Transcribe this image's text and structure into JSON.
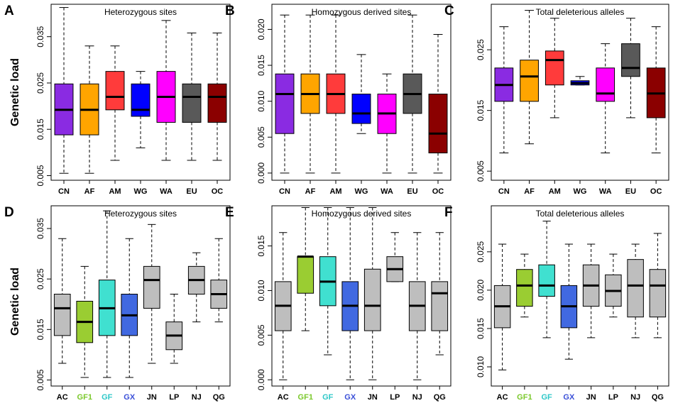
{
  "figure": {
    "ylabel": "Genetic load"
  },
  "chart_data": [
    {
      "id": "A",
      "type": "boxplot",
      "title": "Heterozygous sites",
      "ylabel": "Genetic load",
      "ylim": [
        0.004,
        0.042
      ],
      "ticks": [
        0.005,
        0.015,
        0.025,
        0.035
      ],
      "tick_labels": [
        "0.005",
        "0.015",
        "0.025",
        "0.035"
      ],
      "categories": [
        "CN",
        "AF",
        "AM",
        "WG",
        "WA",
        "EU",
        "OC"
      ],
      "label_colors": [
        "#000000",
        "#000000",
        "#000000",
        "#000000",
        "#000000",
        "#000000",
        "#000000"
      ],
      "fill_colors": [
        "#8a2be2",
        "#ffa500",
        "#ff3b3b",
        "#0000ff",
        "#ff00ff",
        "#595959",
        "#8b0000"
      ],
      "boxes": [
        {
          "min": 0.0055,
          "q1": 0.0138,
          "median": 0.0192,
          "q3": 0.0248,
          "max": 0.0413
        },
        {
          "min": 0.0055,
          "q1": 0.0138,
          "median": 0.0192,
          "q3": 0.0248,
          "max": 0.033
        },
        {
          "min": 0.0083,
          "q1": 0.0192,
          "median": 0.022,
          "q3": 0.0275,
          "max": 0.033
        },
        {
          "min": 0.011,
          "q1": 0.0178,
          "median": 0.0192,
          "q3": 0.0248,
          "max": 0.0275
        },
        {
          "min": 0.0083,
          "q1": 0.0165,
          "median": 0.022,
          "q3": 0.0275,
          "max": 0.0385
        },
        {
          "min": 0.0083,
          "q1": 0.0165,
          "median": 0.022,
          "q3": 0.0248,
          "max": 0.0358
        },
        {
          "min": 0.0083,
          "q1": 0.0165,
          "median": 0.022,
          "q3": 0.0248,
          "max": 0.0358
        }
      ]
    },
    {
      "id": "B",
      "type": "boxplot",
      "title": "Homozygous derived sites",
      "ylabel": "",
      "ylim": [
        -0.001,
        0.0235
      ],
      "ticks": [
        0.0,
        0.005,
        0.01,
        0.015,
        0.02
      ],
      "tick_labels": [
        "0.000",
        "0.005",
        "0.010",
        "0.015",
        "0.020"
      ],
      "categories": [
        "CN",
        "AF",
        "AM",
        "WG",
        "WA",
        "EU",
        "OC"
      ],
      "label_colors": [
        "#000000",
        "#000000",
        "#000000",
        "#000000",
        "#000000",
        "#000000",
        "#000000"
      ],
      "fill_colors": [
        "#8a2be2",
        "#ffa500",
        "#ff3b3b",
        "#0000ff",
        "#ff00ff",
        "#595959",
        "#8b0000"
      ],
      "boxes": [
        {
          "min": 0.0,
          "q1": 0.0055,
          "median": 0.011,
          "q3": 0.0138,
          "max": 0.022
        },
        {
          "min": 0.0,
          "q1": 0.0083,
          "median": 0.011,
          "q3": 0.0138,
          "max": 0.022
        },
        {
          "min": 0.0,
          "q1": 0.0083,
          "median": 0.011,
          "q3": 0.0138,
          "max": 0.022
        },
        {
          "min": 0.0055,
          "q1": 0.0069,
          "median": 0.0083,
          "q3": 0.011,
          "max": 0.0165
        },
        {
          "min": 0.0,
          "q1": 0.0055,
          "median": 0.0083,
          "q3": 0.011,
          "max": 0.0138
        },
        {
          "min": 0.0,
          "q1": 0.0083,
          "median": 0.011,
          "q3": 0.0138,
          "max": 0.022
        },
        {
          "min": 0.0,
          "q1": 0.0028,
          "median": 0.0055,
          "q3": 0.011,
          "max": 0.0193
        }
      ]
    },
    {
      "id": "C",
      "type": "boxplot",
      "title": "Total deleterious alleles",
      "ylabel": "",
      "ylim": [
        0.0035,
        0.0325
      ],
      "ticks": [
        0.005,
        0.015,
        0.025
      ],
      "tick_labels": [
        "0.005",
        "0.015",
        "0.025"
      ],
      "categories": [
        "CN",
        "AF",
        "AM",
        "WG",
        "WA",
        "EU",
        "OC"
      ],
      "label_colors": [
        "#000000",
        "#000000",
        "#000000",
        "#000000",
        "#000000",
        "#000000",
        "#000000"
      ],
      "fill_colors": [
        "#8a2be2",
        "#ffa500",
        "#ff3b3b",
        "#0000ff",
        "#ff00ff",
        "#595959",
        "#8b0000"
      ],
      "boxes": [
        {
          "min": 0.008,
          "q1": 0.0165,
          "median": 0.0192,
          "q3": 0.022,
          "max": 0.0288
        },
        {
          "min": 0.0095,
          "q1": 0.0165,
          "median": 0.0206,
          "q3": 0.0233,
          "max": 0.0315
        },
        {
          "min": 0.0138,
          "q1": 0.0192,
          "median": 0.0233,
          "q3": 0.0248,
          "max": 0.0302
        },
        {
          "min": 0.0192,
          "q1": 0.0192,
          "median": 0.0195,
          "q3": 0.0199,
          "max": 0.0206
        },
        {
          "min": 0.008,
          "q1": 0.0165,
          "median": 0.0178,
          "q3": 0.022,
          "max": 0.026
        },
        {
          "min": 0.0138,
          "q1": 0.0206,
          "median": 0.022,
          "q3": 0.026,
          "max": 0.0302
        },
        {
          "min": 0.008,
          "q1": 0.0138,
          "median": 0.0178,
          "q3": 0.022,
          "max": 0.0288
        }
      ]
    },
    {
      "id": "D",
      "type": "boxplot",
      "title": "Heterozygous sites",
      "ylabel": "Genetic load",
      "ylim": [
        0.0038,
        0.0395
      ],
      "ticks": [
        0.005,
        0.015,
        0.025,
        0.035
      ],
      "tick_labels": [
        "0.005",
        "0.015",
        "0.025",
        "0.035"
      ],
      "categories": [
        "AC",
        "GF1",
        "GF",
        "GX",
        "JN",
        "LP",
        "NJ",
        "QG"
      ],
      "label_colors": [
        "#000000",
        "#7ac82a",
        "#2ec8c8",
        "#3a4fd8",
        "#000000",
        "#000000",
        "#000000",
        "#000000"
      ],
      "fill_colors": [
        "#bebebe",
        "#9acd32",
        "#40e0d0",
        "#4169e1",
        "#bebebe",
        "#bebebe",
        "#bebebe",
        "#bebebe"
      ],
      "boxes": [
        {
          "min": 0.0083,
          "q1": 0.0138,
          "median": 0.0192,
          "q3": 0.022,
          "max": 0.033
        },
        {
          "min": 0.0055,
          "q1": 0.0124,
          "median": 0.0165,
          "q3": 0.0206,
          "max": 0.0275
        },
        {
          "min": 0.0055,
          "q1": 0.0138,
          "median": 0.0192,
          "q3": 0.0248,
          "max": 0.0385
        },
        {
          "min": 0.0055,
          "q1": 0.0138,
          "median": 0.0178,
          "q3": 0.022,
          "max": 0.033
        },
        {
          "min": 0.0083,
          "q1": 0.0192,
          "median": 0.0248,
          "q3": 0.0275,
          "max": 0.0358
        },
        {
          "min": 0.0083,
          "q1": 0.011,
          "median": 0.0138,
          "q3": 0.0165,
          "max": 0.022
        },
        {
          "min": 0.0165,
          "q1": 0.022,
          "median": 0.0248,
          "q3": 0.0275,
          "max": 0.0302
        },
        {
          "min": 0.0165,
          "q1": 0.0192,
          "median": 0.022,
          "q3": 0.0248,
          "max": 0.033
        }
      ]
    },
    {
      "id": "E",
      "type": "boxplot",
      "title": "Homozygous derived sites",
      "ylabel": "",
      "ylim": [
        -0.0007,
        0.0195
      ],
      "ticks": [
        0.0,
        0.005,
        0.01,
        0.015
      ],
      "tick_labels": [
        "0.000",
        "0.005",
        "0.010",
        "0.015"
      ],
      "categories": [
        "AC",
        "GF1",
        "GF",
        "GX",
        "JN",
        "LP",
        "NJ",
        "QG"
      ],
      "label_colors": [
        "#000000",
        "#7ac82a",
        "#2ec8c8",
        "#3a4fd8",
        "#000000",
        "#000000",
        "#000000",
        "#000000"
      ],
      "fill_colors": [
        "#bebebe",
        "#9acd32",
        "#40e0d0",
        "#4169e1",
        "#bebebe",
        "#bebebe",
        "#bebebe",
        "#bebebe"
      ],
      "boxes": [
        {
          "min": 0.0,
          "q1": 0.0055,
          "median": 0.0083,
          "q3": 0.011,
          "max": 0.0165
        },
        {
          "min": 0.0055,
          "q1": 0.0097,
          "median": 0.0138,
          "q3": 0.0138,
          "max": 0.0193
        },
        {
          "min": 0.0028,
          "q1": 0.0083,
          "median": 0.011,
          "q3": 0.0138,
          "max": 0.0193
        },
        {
          "min": 0.0,
          "q1": 0.0055,
          "median": 0.0083,
          "q3": 0.011,
          "max": 0.0193
        },
        {
          "min": 0.0,
          "q1": 0.0055,
          "median": 0.0083,
          "q3": 0.0124,
          "max": 0.0193
        },
        {
          "min": 0.011,
          "q1": 0.011,
          "median": 0.0124,
          "q3": 0.0138,
          "max": 0.0165
        },
        {
          "min": 0.0,
          "q1": 0.0055,
          "median": 0.0083,
          "q3": 0.011,
          "max": 0.0165
        },
        {
          "min": 0.0028,
          "q1": 0.0055,
          "median": 0.0097,
          "q3": 0.011,
          "max": 0.0165
        }
      ]
    },
    {
      "id": "F",
      "type": "boxplot",
      "title": "Total deleterious alleles",
      "ylabel": "",
      "ylim": [
        0.0075,
        0.031
      ],
      "ticks": [
        0.01,
        0.015,
        0.02,
        0.025
      ],
      "tick_labels": [
        "0.010",
        "0.015",
        "0.020",
        "0.025"
      ],
      "categories": [
        "AC",
        "GF1",
        "GF",
        "GX",
        "JN",
        "LP",
        "NJ",
        "QG"
      ],
      "label_colors": [
        "#000000",
        "#7ac82a",
        "#2ec8c8",
        "#3a4fd8",
        "#000000",
        "#000000",
        "#000000",
        "#000000"
      ],
      "fill_colors": [
        "#bebebe",
        "#9acd32",
        "#40e0d0",
        "#4169e1",
        "#bebebe",
        "#bebebe",
        "#bebebe",
        "#bebebe"
      ],
      "boxes": [
        {
          "min": 0.0096,
          "q1": 0.0151,
          "median": 0.0179,
          "q3": 0.0206,
          "max": 0.026
        },
        {
          "min": 0.0165,
          "q1": 0.0179,
          "median": 0.0206,
          "q3": 0.0227,
          "max": 0.0247
        },
        {
          "min": 0.0138,
          "q1": 0.0192,
          "median": 0.0206,
          "q3": 0.0233,
          "max": 0.029
        },
        {
          "min": 0.011,
          "q1": 0.0151,
          "median": 0.0179,
          "q3": 0.0206,
          "max": 0.026
        },
        {
          "min": 0.0138,
          "q1": 0.0179,
          "median": 0.0206,
          "q3": 0.0233,
          "max": 0.026
        },
        {
          "min": 0.0165,
          "q1": 0.0179,
          "median": 0.0199,
          "q3": 0.022,
          "max": 0.0247
        },
        {
          "min": 0.0138,
          "q1": 0.0165,
          "median": 0.0206,
          "q3": 0.024,
          "max": 0.026
        },
        {
          "min": 0.0138,
          "q1": 0.0165,
          "median": 0.0206,
          "q3": 0.0227,
          "max": 0.0274
        }
      ]
    }
  ]
}
